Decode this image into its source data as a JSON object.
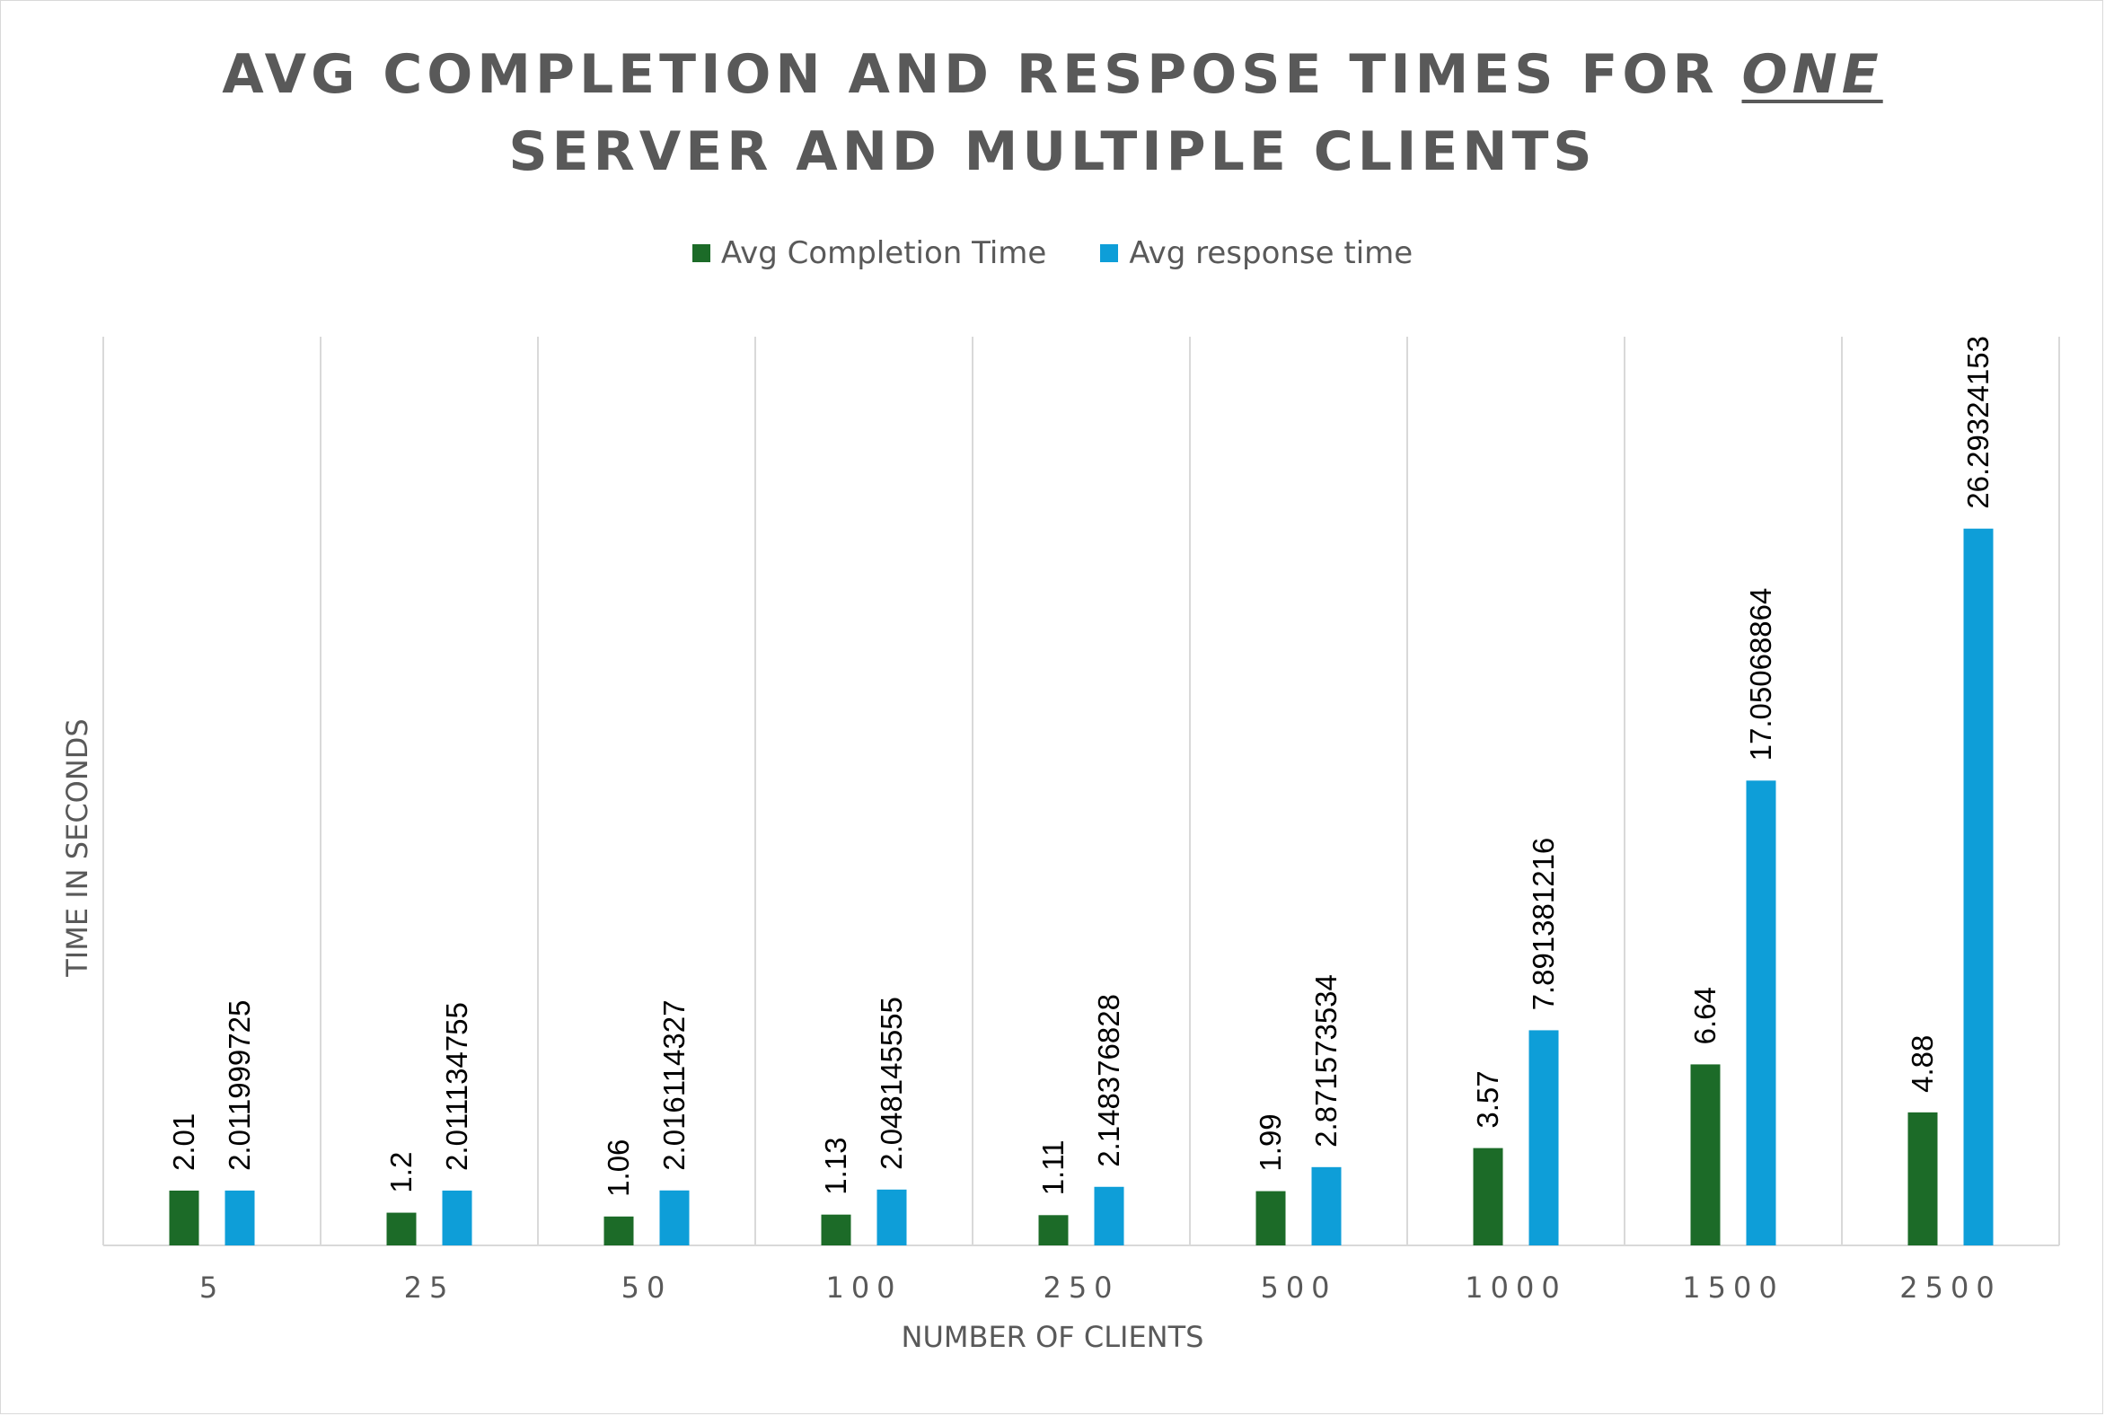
{
  "chart_data": {
    "type": "bar",
    "title_line1_prefix": "AVG COMPLETION AND RESPOSE TIMES FOR ",
    "title_emphasis": "ONE",
    "title_line2": "SERVER AND MULTIPLE CLIENTS",
    "xlabel": "NUMBER OF CLIENTS",
    "ylabel": "TIME IN SECONDS",
    "categories": [
      "5",
      "25",
      "50",
      "100",
      "250",
      "500",
      "1000",
      "1500",
      "2500"
    ],
    "series": [
      {
        "name": "Avg Completion Time",
        "color": "#1c6b28",
        "values": [
          2.01,
          1.2,
          1.06,
          1.13,
          1.11,
          1.99,
          3.57,
          6.64,
          4.88
        ],
        "labels": [
          "2.01",
          "1.2",
          "1.06",
          "1.13",
          "1.11",
          "1.99",
          "3.57",
          "6.64",
          "4.88"
        ]
      },
      {
        "name": "Avg response time",
        "color": "#0e9ed8",
        "values": [
          2.011999725,
          2.011134755,
          2.016114327,
          2.048145555,
          2.148376828,
          2.871573534,
          7.891381216,
          17.05068864,
          26.29324153
        ],
        "labels": [
          "2.011999725",
          "2.011134755",
          "2.016114327",
          "2.048145555",
          "2.148376828",
          "2.871573534",
          "7.891381216",
          "17.05068864",
          "26.29324153"
        ]
      }
    ],
    "ylim": [
      0,
      30
    ],
    "grid": "vertical",
    "legend_position": "top"
  }
}
